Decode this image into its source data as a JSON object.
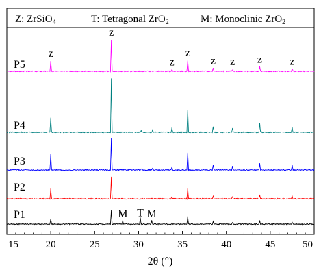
{
  "chart_data": {
    "type": "line",
    "legend_text": {
      "z": "Z: ZrSiO",
      "z_sub": "4",
      "t": "T: Tetragonal ZrO",
      "t_sub": "2",
      "m": "M: Monoclinic ZrO",
      "m_sub": "2"
    },
    "xlabel": "2θ (°)",
    "ylabel": "",
    "xlim": [
      15,
      50
    ],
    "xticks": [
      15,
      20,
      25,
      30,
      35,
      40,
      45,
      50
    ],
    "grid": false,
    "series": [
      {
        "name": "P1",
        "color": "#000000",
        "peaks": [
          [
            20.0,
            0.28
          ],
          [
            23.0,
            0.08
          ],
          [
            26.9,
            0.75
          ],
          [
            28.2,
            0.18
          ],
          [
            30.2,
            0.35
          ],
          [
            31.5,
            0.2
          ],
          [
            33.8,
            0.08
          ],
          [
            35.6,
            0.4
          ],
          [
            38.5,
            0.12
          ],
          [
            40.7,
            0.1
          ],
          [
            43.8,
            0.18
          ],
          [
            47.5,
            0.12
          ]
        ]
      },
      {
        "name": "P2",
        "color": "#ff0000",
        "peaks": [
          [
            20.0,
            0.45
          ],
          [
            26.9,
            1.0
          ],
          [
            33.8,
            0.08
          ],
          [
            35.6,
            0.48
          ],
          [
            38.5,
            0.1
          ],
          [
            40.7,
            0.08
          ],
          [
            43.8,
            0.18
          ],
          [
            47.5,
            0.12
          ]
        ]
      },
      {
        "name": "P3",
        "color": "#0000ff",
        "peaks": [
          [
            20.0,
            0.5
          ],
          [
            26.9,
            1.0
          ],
          [
            30.3,
            0.05
          ],
          [
            31.6,
            0.06
          ],
          [
            33.8,
            0.1
          ],
          [
            35.6,
            0.55
          ],
          [
            38.5,
            0.15
          ],
          [
            40.7,
            0.12
          ],
          [
            43.8,
            0.2
          ],
          [
            47.5,
            0.16
          ]
        ]
      },
      {
        "name": "P4",
        "color": "#008080",
        "peaks": [
          [
            20.0,
            0.28
          ],
          [
            26.9,
            1.0
          ],
          [
            30.3,
            0.04
          ],
          [
            31.6,
            0.05
          ],
          [
            33.8,
            0.09
          ],
          [
            35.6,
            0.43
          ],
          [
            38.5,
            0.11
          ],
          [
            40.7,
            0.08
          ],
          [
            43.8,
            0.17
          ],
          [
            47.5,
            0.1
          ]
        ]
      },
      {
        "name": "P5",
        "color": "#ff00ff",
        "peaks": [
          [
            20.0,
            0.33
          ],
          [
            26.9,
            1.0
          ],
          [
            33.8,
            0.05
          ],
          [
            35.6,
            0.35
          ],
          [
            38.5,
            0.1
          ],
          [
            40.7,
            0.06
          ],
          [
            43.8,
            0.14
          ],
          [
            47.5,
            0.08
          ]
        ]
      }
    ],
    "annotations": [
      {
        "text": "z",
        "x": 20.0,
        "series": "P5"
      },
      {
        "text": "z",
        "x": 26.9,
        "series": "P5"
      },
      {
        "text": "z",
        "x": 33.8,
        "series": "P5"
      },
      {
        "text": "z",
        "x": 35.6,
        "series": "P5"
      },
      {
        "text": "z",
        "x": 38.5,
        "series": "P5"
      },
      {
        "text": "z",
        "x": 40.7,
        "series": "P5"
      },
      {
        "text": "z",
        "x": 43.8,
        "series": "P5"
      },
      {
        "text": "z",
        "x": 47.5,
        "series": "P5"
      },
      {
        "text": "M",
        "x": 28.2,
        "series": "P1"
      },
      {
        "text": "T",
        "x": 30.2,
        "series": "P1"
      },
      {
        "text": "M",
        "x": 31.5,
        "series": "P1"
      }
    ]
  }
}
